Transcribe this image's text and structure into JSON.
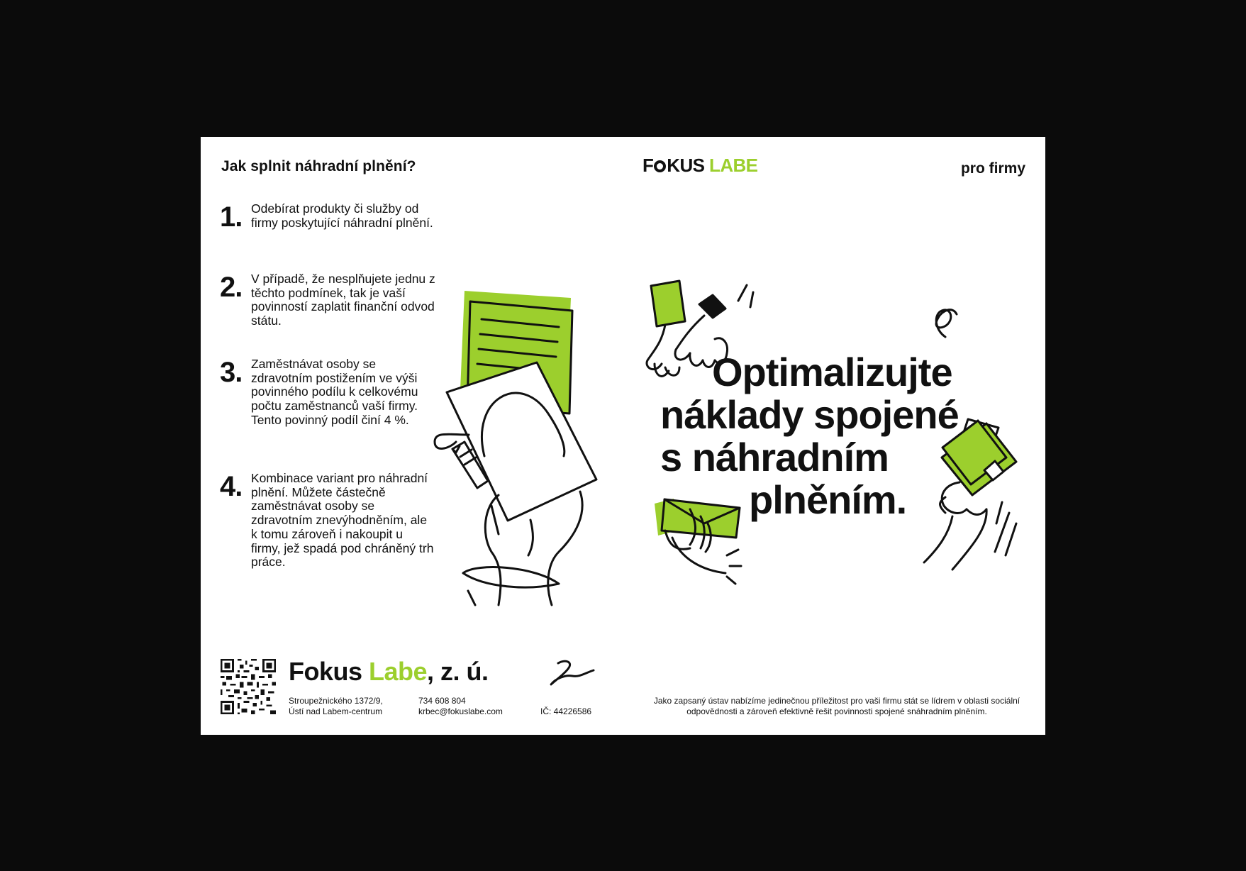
{
  "header": {
    "left_title": "Jak splnit náhradní plnění?",
    "logo_first": "F",
    "logo_rest": "KUS",
    "logo_accent": "LABE",
    "right_label": "pro firmy"
  },
  "steps": [
    {
      "number": "1.",
      "text": "Odebírat produkty či služby od firmy poskytující náhradní plnění."
    },
    {
      "number": "2.",
      "text": "V případě, že nesplňujete jednu z těchto podmínek, tak je vaší povinností zaplatit finanční odvod státu."
    },
    {
      "number": "3.",
      "text": "Zaměstnávat osoby se zdravotním postižením ve výši povinného podílu k celkovému počtu zaměstnanců vaší firmy. Tento povinný podíl činí 4 %."
    },
    {
      "number": "4.",
      "text": "Kombinace variant pro náhradní plnění. Můžete částečně zaměstnávat osoby se zdravotním znevýhodněním, ale k tomu zároveň i nakoupit u firmy, jež spadá pod chráněný trh práce."
    }
  ],
  "headline": {
    "line1": "Optimalizujte",
    "line2": "náklady spojené",
    "line3": "s náhradním",
    "line4": "plněním."
  },
  "footer": {
    "org_name_a": "Fokus ",
    "org_name_accent": "Labe",
    "org_name_b": ", z. ú.",
    "address_line1": "Stroupežnického 1372/9,",
    "address_line2": "Ústí nad Labem-centrum",
    "phone": "734 608 804",
    "email": "krbec@fokuslabe.com",
    "company_id": "IČ: 44226586",
    "note": "Jako zapsaný ústav nabízíme jedinečnou příležitost pro vaši firmu stát se lídrem  v oblasti sociální odpovědnosti a zároveň efektivně řešit povinnosti spojené snáhradním plněním."
  },
  "colors": {
    "accent": "#9ccf2d",
    "ink": "#111111",
    "paper": "#ffffff",
    "background": "#0b0b0b"
  },
  "icons": [
    "qr-code-icon",
    "signature-icon",
    "document-hand-illustration",
    "handshake-illustration",
    "wallet-illustration",
    "envelope-hand-illustration"
  ]
}
